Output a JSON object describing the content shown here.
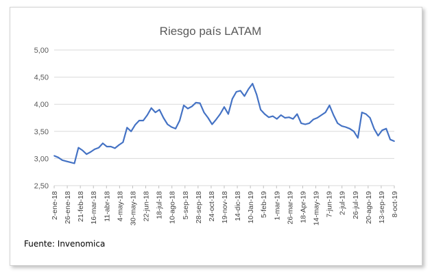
{
  "chart_data": {
    "type": "line",
    "title": "Riesgo país LATAM",
    "xlabel": "",
    "ylabel": "",
    "ylim": [
      2.5,
      5.0
    ],
    "yticks": [
      "2,50",
      "3,00",
      "3,50",
      "4,00",
      "4,50",
      "5,00"
    ],
    "xticks": [
      "2-ene-18",
      "26-ene-18",
      "21-feb-18",
      "16-mar-18",
      "11-abr-18",
      "4-may-18",
      "30-may-18",
      "22-jun-18",
      "18-jul-18",
      "10-ago-18",
      "5-sep-18",
      "28-sep-18",
      "24-oct-18",
      "19-nov-18",
      "14-dic-18",
      "10-Jan-19",
      "5-feb-19",
      "1-mar-19",
      "26-mar-19",
      "18-Apr-19",
      "14-may-19",
      "7-jun-19",
      "2-jul-19",
      "26-jul-19",
      "20-ago-19",
      "13-sep-19",
      "8-oct-19"
    ],
    "grid": "horizontal",
    "legend": "none",
    "series": [
      {
        "color": "#4472c4",
        "values": [
          3.05,
          3.02,
          2.97,
          2.95,
          2.93,
          2.91,
          3.2,
          3.15,
          3.08,
          3.12,
          3.17,
          3.2,
          3.28,
          3.22,
          3.22,
          3.19,
          3.25,
          3.3,
          3.57,
          3.5,
          3.62,
          3.7,
          3.7,
          3.8,
          3.93,
          3.85,
          3.9,
          3.75,
          3.63,
          3.58,
          3.55,
          3.7,
          3.98,
          3.92,
          3.96,
          4.03,
          4.02,
          3.85,
          3.75,
          3.63,
          3.72,
          3.82,
          3.95,
          3.82,
          4.1,
          4.23,
          4.25,
          4.15,
          4.28,
          4.38,
          4.18,
          3.9,
          3.82,
          3.76,
          3.78,
          3.73,
          3.8,
          3.75,
          3.76,
          3.73,
          3.82,
          3.65,
          3.63,
          3.65,
          3.72,
          3.75,
          3.8,
          3.85,
          3.98,
          3.8,
          3.65,
          3.6,
          3.58,
          3.55,
          3.5,
          3.38,
          3.85,
          3.82,
          3.75,
          3.55,
          3.42,
          3.52,
          3.55,
          3.35,
          3.32
        ]
      }
    ]
  },
  "source": "Fuente: Invenomica"
}
